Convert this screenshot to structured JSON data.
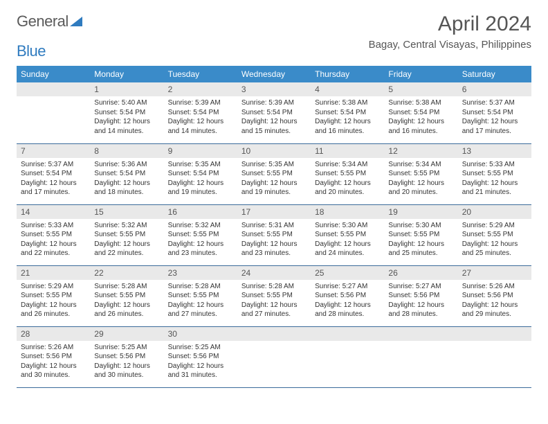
{
  "logo": {
    "word1": "General",
    "word2": "Blue"
  },
  "title": "April 2024",
  "location": "Bagay, Central Visayas, Philippines",
  "colors": {
    "header_bg": "#3a8bc9",
    "header_text": "#ffffff",
    "daynum_bg": "#e9e9e9",
    "text": "#333333",
    "rule": "#3a6a9a",
    "logo_gray": "#5a5a5a",
    "logo_blue": "#2f7bbf"
  },
  "typography": {
    "month_title_size": 30,
    "location_size": 15,
    "weekday_size": 12,
    "daynum_size": 12,
    "body_size": 10
  },
  "weekdays": [
    "Sunday",
    "Monday",
    "Tuesday",
    "Wednesday",
    "Thursday",
    "Friday",
    "Saturday"
  ],
  "weeks": [
    [
      null,
      {
        "n": "1",
        "sr": "5:40 AM",
        "ss": "5:54 PM",
        "dl": "12 hours and 14 minutes."
      },
      {
        "n": "2",
        "sr": "5:39 AM",
        "ss": "5:54 PM",
        "dl": "12 hours and 14 minutes."
      },
      {
        "n": "3",
        "sr": "5:39 AM",
        "ss": "5:54 PM",
        "dl": "12 hours and 15 minutes."
      },
      {
        "n": "4",
        "sr": "5:38 AM",
        "ss": "5:54 PM",
        "dl": "12 hours and 16 minutes."
      },
      {
        "n": "5",
        "sr": "5:38 AM",
        "ss": "5:54 PM",
        "dl": "12 hours and 16 minutes."
      },
      {
        "n": "6",
        "sr": "5:37 AM",
        "ss": "5:54 PM",
        "dl": "12 hours and 17 minutes."
      }
    ],
    [
      {
        "n": "7",
        "sr": "5:37 AM",
        "ss": "5:54 PM",
        "dl": "12 hours and 17 minutes."
      },
      {
        "n": "8",
        "sr": "5:36 AM",
        "ss": "5:54 PM",
        "dl": "12 hours and 18 minutes."
      },
      {
        "n": "9",
        "sr": "5:35 AM",
        "ss": "5:54 PM",
        "dl": "12 hours and 19 minutes."
      },
      {
        "n": "10",
        "sr": "5:35 AM",
        "ss": "5:55 PM",
        "dl": "12 hours and 19 minutes."
      },
      {
        "n": "11",
        "sr": "5:34 AM",
        "ss": "5:55 PM",
        "dl": "12 hours and 20 minutes."
      },
      {
        "n": "12",
        "sr": "5:34 AM",
        "ss": "5:55 PM",
        "dl": "12 hours and 20 minutes."
      },
      {
        "n": "13",
        "sr": "5:33 AM",
        "ss": "5:55 PM",
        "dl": "12 hours and 21 minutes."
      }
    ],
    [
      {
        "n": "14",
        "sr": "5:33 AM",
        "ss": "5:55 PM",
        "dl": "12 hours and 22 minutes."
      },
      {
        "n": "15",
        "sr": "5:32 AM",
        "ss": "5:55 PM",
        "dl": "12 hours and 22 minutes."
      },
      {
        "n": "16",
        "sr": "5:32 AM",
        "ss": "5:55 PM",
        "dl": "12 hours and 23 minutes."
      },
      {
        "n": "17",
        "sr": "5:31 AM",
        "ss": "5:55 PM",
        "dl": "12 hours and 23 minutes."
      },
      {
        "n": "18",
        "sr": "5:30 AM",
        "ss": "5:55 PM",
        "dl": "12 hours and 24 minutes."
      },
      {
        "n": "19",
        "sr": "5:30 AM",
        "ss": "5:55 PM",
        "dl": "12 hours and 25 minutes."
      },
      {
        "n": "20",
        "sr": "5:29 AM",
        "ss": "5:55 PM",
        "dl": "12 hours and 25 minutes."
      }
    ],
    [
      {
        "n": "21",
        "sr": "5:29 AM",
        "ss": "5:55 PM",
        "dl": "12 hours and 26 minutes."
      },
      {
        "n": "22",
        "sr": "5:28 AM",
        "ss": "5:55 PM",
        "dl": "12 hours and 26 minutes."
      },
      {
        "n": "23",
        "sr": "5:28 AM",
        "ss": "5:55 PM",
        "dl": "12 hours and 27 minutes."
      },
      {
        "n": "24",
        "sr": "5:28 AM",
        "ss": "5:55 PM",
        "dl": "12 hours and 27 minutes."
      },
      {
        "n": "25",
        "sr": "5:27 AM",
        "ss": "5:56 PM",
        "dl": "12 hours and 28 minutes."
      },
      {
        "n": "26",
        "sr": "5:27 AM",
        "ss": "5:56 PM",
        "dl": "12 hours and 28 minutes."
      },
      {
        "n": "27",
        "sr": "5:26 AM",
        "ss": "5:56 PM",
        "dl": "12 hours and 29 minutes."
      }
    ],
    [
      {
        "n": "28",
        "sr": "5:26 AM",
        "ss": "5:56 PM",
        "dl": "12 hours and 30 minutes."
      },
      {
        "n": "29",
        "sr": "5:25 AM",
        "ss": "5:56 PM",
        "dl": "12 hours and 30 minutes."
      },
      {
        "n": "30",
        "sr": "5:25 AM",
        "ss": "5:56 PM",
        "dl": "12 hours and 31 minutes."
      },
      null,
      null,
      null,
      null
    ]
  ],
  "labels": {
    "sunrise": "Sunrise: ",
    "sunset": "Sunset: ",
    "daylight": "Daylight: "
  }
}
